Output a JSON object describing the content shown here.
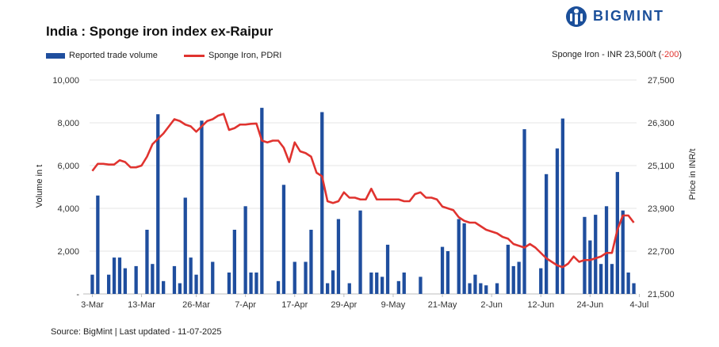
{
  "header": {
    "title": "India : Sponge iron index ex-Raipur",
    "brand": "BIGMINT"
  },
  "legend": {
    "volume_label": "Reported trade volume",
    "price_label": "Sponge Iron, PDRI"
  },
  "price_note": {
    "prefix": "Sponge Iron - INR 23,500/t (",
    "change": "-200",
    "suffix": ")"
  },
  "footer": {
    "source": "Source: BigMint | Last updated - 11-07-2025"
  },
  "colors": {
    "bar": "#1f4e9e",
    "line": "#e0332f",
    "brand": "#1b4f9a"
  },
  "chart_data": {
    "type": "bar+line",
    "title": "India : Sponge iron index ex-Raipur",
    "ylabel_left": "Volume in t",
    "ylabel_right": "Price in INR/t",
    "ylim_left": [
      0,
      10000
    ],
    "ylim_right": [
      21500,
      27500
    ],
    "left_ticks": [
      "-",
      "2,000",
      "4,000",
      "6,000",
      "8,000",
      "10,000"
    ],
    "left_tick_values": [
      0,
      2000,
      4000,
      6000,
      8000,
      10000
    ],
    "right_ticks": [
      "21,500",
      "22,700",
      "23,900",
      "25,100",
      "26,300",
      "27,500"
    ],
    "right_tick_values": [
      21500,
      22700,
      23900,
      25100,
      26300,
      27500
    ],
    "x_labels": [
      "3-Mar",
      "13-Mar",
      "26-Mar",
      "7-Apr",
      "17-Apr",
      "29-Apr",
      "9-May",
      "21-May",
      "2-Jun",
      "12-Jun",
      "24-Jun",
      "4-Jul"
    ],
    "x_label_index": [
      0,
      9,
      19,
      28,
      37,
      46,
      55,
      64,
      73,
      82,
      91,
      100
    ],
    "series": [
      {
        "name": "Reported trade volume",
        "type": "bar",
        "values": [
          900,
          4600,
          0,
          900,
          1700,
          1700,
          1200,
          0,
          1300,
          0,
          3000,
          1400,
          8400,
          600,
          0,
          1300,
          500,
          4500,
          1700,
          900,
          8100,
          0,
          1500,
          0,
          0,
          1000,
          3000,
          0,
          4100,
          1000,
          1000,
          8700,
          0,
          0,
          600,
          5100,
          0,
          1500,
          0,
          1500,
          3000,
          0,
          8500,
          500,
          1100,
          3500,
          0,
          500,
          0,
          3900,
          0,
          1000,
          1000,
          800,
          2300,
          0,
          600,
          1000,
          0,
          0,
          800,
          0,
          0,
          0,
          2200,
          2000,
          0,
          3500,
          3300,
          500,
          900,
          500,
          400,
          0,
          500,
          0,
          2300,
          1300,
          1500,
          7700,
          0,
          0,
          1200,
          5600,
          0,
          6800,
          8200,
          0,
          0,
          0,
          3600,
          2500,
          3700,
          1400,
          4100,
          1400,
          5700,
          3900,
          1000,
          500
        ]
      },
      {
        "name": "Sponge Iron, PDRI",
        "type": "line",
        "values": [
          24950,
          25150,
          25150,
          25130,
          25130,
          25250,
          25200,
          25050,
          25050,
          25100,
          25350,
          25700,
          25850,
          26000,
          26200,
          26400,
          26350,
          26250,
          26200,
          26050,
          26200,
          26350,
          26400,
          26500,
          26550,
          26100,
          26150,
          26250,
          26250,
          26270,
          26280,
          25800,
          25750,
          25800,
          25800,
          25600,
          25200,
          25750,
          25500,
          25450,
          25350,
          24900,
          24800,
          24100,
          24050,
          24100,
          24350,
          24200,
          24200,
          24150,
          24150,
          24450,
          24150,
          24150,
          24150,
          24150,
          24150,
          24100,
          24100,
          24300,
          24350,
          24200,
          24200,
          24150,
          23950,
          23900,
          23850,
          23650,
          23550,
          23500,
          23500,
          23400,
          23300,
          23250,
          23200,
          23100,
          23050,
          22900,
          22850,
          22800,
          22900,
          22800,
          22650,
          22500,
          22400,
          22300,
          22250,
          22350,
          22550,
          22400,
          22450,
          22450,
          22500,
          22550,
          22650,
          22650,
          23300,
          23700,
          23700,
          23500
        ]
      }
    ]
  }
}
